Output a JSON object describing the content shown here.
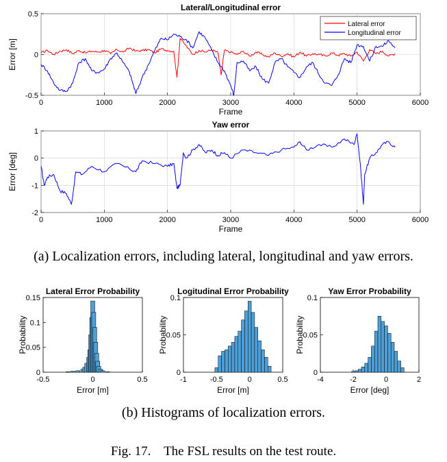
{
  "figure": {
    "caption_a": "(a) Localization errors, including lateral, longitudinal and yaw errors.",
    "caption_b": "(b) Histograms of localization errors.",
    "caption_fig": "Fig. 17.    The FSL results on the test route."
  },
  "colors": {
    "lateral": "#ff0000",
    "longitudinal": "#0000ff",
    "yaw": "#0000ff",
    "bar": "#4f9fd6",
    "bar_dark": "#000000"
  },
  "chart_data": [
    {
      "type": "line",
      "title": "Lateral/Longitudinal error",
      "xlabel": "Frame",
      "ylabel": "Error [m]",
      "xlim": [
        0,
        6000
      ],
      "ylim": [
        -0.5,
        0.5
      ],
      "xticks": [
        "0",
        "1000",
        "2000",
        "3000",
        "4000",
        "5000",
        "6000"
      ],
      "yticks": [
        "-0.5",
        "0",
        "0.5"
      ],
      "grid": true,
      "legend_position": "top-right",
      "series": [
        {
          "name": "Lateral error",
          "color": "#ff0000",
          "x": [
            0,
            100,
            200,
            300,
            400,
            500,
            600,
            700,
            800,
            900,
            1000,
            1100,
            1200,
            1300,
            1400,
            1500,
            1600,
            1700,
            1800,
            1900,
            2000,
            2100,
            2150,
            2200,
            2300,
            2400,
            2500,
            2600,
            2700,
            2800,
            2850,
            2900,
            3000,
            3100,
            3200,
            3300,
            3400,
            3500,
            3600,
            3700,
            3800,
            3900,
            4000,
            4100,
            4200,
            4300,
            4400,
            4500,
            4600,
            4700,
            4800,
            4900,
            5000,
            5100,
            5200,
            5300,
            5400,
            5500,
            5600
          ],
          "y": [
            0.02,
            0.05,
            0.0,
            0.04,
            0.06,
            0.01,
            0.05,
            0.02,
            0.04,
            0.03,
            0.05,
            0.01,
            0.06,
            0.03,
            0.08,
            0.04,
            0.05,
            0.06,
            0.02,
            0.07,
            0.05,
            0.04,
            -0.28,
            0.2,
            0.1,
            0.0,
            0.05,
            0.03,
            0.06,
            0.02,
            -0.25,
            0.05,
            0.03,
            0.0,
            0.04,
            -0.02,
            0.03,
            0.0,
            -0.03,
            0.02,
            -0.02,
            0.01,
            -0.03,
            0.03,
            -0.02,
            0.01,
            0.0,
            -0.02,
            0.02,
            -0.01,
            0.01,
            -0.02,
            0.03,
            -0.08,
            0.06,
            0.01,
            0.04,
            -0.02,
            0.01
          ]
        },
        {
          "name": "Longitudinal error",
          "color": "#0000ff",
          "x": [
            0,
            100,
            200,
            300,
            400,
            500,
            600,
            700,
            800,
            900,
            1000,
            1100,
            1200,
            1300,
            1400,
            1450,
            1500,
            1600,
            1700,
            1800,
            1900,
            2000,
            2100,
            2200,
            2300,
            2400,
            2500,
            2600,
            2700,
            2800,
            2900,
            3000,
            3050,
            3100,
            3200,
            3300,
            3400,
            3500,
            3600,
            3700,
            3800,
            3900,
            4000,
            4100,
            4200,
            4300,
            4400,
            4500,
            4600,
            4700,
            4800,
            4900,
            5000,
            5100,
            5200,
            5300,
            5400,
            5500,
            5600
          ],
          "y": [
            -0.12,
            -0.2,
            -0.35,
            -0.44,
            -0.45,
            -0.35,
            -0.1,
            -0.05,
            -0.2,
            -0.22,
            -0.18,
            -0.05,
            0.02,
            -0.1,
            -0.22,
            -0.35,
            -0.48,
            -0.28,
            -0.12,
            0.05,
            0.2,
            0.18,
            0.25,
            0.22,
            0.18,
            0.08,
            0.28,
            0.2,
            0.05,
            -0.1,
            -0.2,
            -0.38,
            -0.5,
            -0.1,
            -0.08,
            -0.2,
            -0.15,
            -0.3,
            -0.35,
            -0.1,
            -0.05,
            -0.15,
            -0.22,
            -0.28,
            -0.15,
            -0.1,
            -0.25,
            -0.35,
            -0.38,
            -0.25,
            -0.05,
            -0.1,
            0.12,
            0.1,
            -0.08,
            0.1,
            0.1,
            0.17,
            0.08
          ]
        }
      ]
    },
    {
      "type": "line",
      "title": "Yaw error",
      "xlabel": "Frame",
      "ylabel": "Error [deg]",
      "xlim": [
        0,
        6000
      ],
      "ylim": [
        -2,
        1
      ],
      "xticks": [
        "0",
        "1000",
        "2000",
        "3000",
        "4000",
        "5000",
        "6000"
      ],
      "yticks": [
        "-2",
        "-1",
        "0",
        "1"
      ],
      "grid": true,
      "series": [
        {
          "color": "#0000ff",
          "x": [
            0,
            50,
            100,
            200,
            300,
            400,
            480,
            550,
            650,
            800,
            1000,
            1200,
            1400,
            1500,
            1600,
            1800,
            2000,
            2100,
            2150,
            2200,
            2250,
            2300,
            2400,
            2500,
            2600,
            2700,
            2800,
            2900,
            3000,
            3200,
            3400,
            3600,
            3800,
            4000,
            4100,
            4200,
            4400,
            4600,
            4800,
            4950,
            5000,
            5050,
            5100,
            5120,
            5200,
            5300,
            5400,
            5500,
            5600
          ],
          "y": [
            -0.3,
            -1.0,
            -0.7,
            -0.6,
            -1.2,
            -1.3,
            -1.7,
            -0.5,
            -0.6,
            -0.3,
            -0.5,
            -0.2,
            -0.4,
            -0.5,
            -0.1,
            -0.2,
            -0.3,
            -0.2,
            -1.1,
            -1.0,
            0.2,
            0.0,
            0.3,
            0.5,
            0.2,
            0.3,
            0.1,
            0.2,
            0.0,
            0.3,
            0.2,
            0.1,
            0.3,
            0.4,
            0.6,
            0.3,
            0.5,
            0.4,
            0.7,
            0.5,
            0.9,
            -0.2,
            -1.7,
            -0.6,
            0.0,
            0.2,
            0.5,
            0.6,
            0.4
          ]
        }
      ]
    },
    {
      "type": "bar",
      "title": "Lateral Error Probability",
      "xlabel": "Error [m]",
      "ylabel": "Probability",
      "xlim": [
        -0.5,
        0.5
      ],
      "ylim": [
        0,
        0.15
      ],
      "xticks": [
        "-0.5",
        "0",
        "0.5"
      ],
      "yticks": [
        "0",
        "0.05",
        "0.1",
        "0.15"
      ],
      "x": [
        -0.25,
        -0.2,
        -0.15,
        -0.1,
        -0.08,
        -0.06,
        -0.04,
        -0.03,
        -0.02,
        -0.01,
        0.0,
        0.01,
        0.02,
        0.03,
        0.04,
        0.05,
        0.06,
        0.08,
        0.1,
        0.15
      ],
      "values": [
        0.001,
        0.002,
        0.003,
        0.006,
        0.01,
        0.018,
        0.03,
        0.045,
        0.075,
        0.11,
        0.143,
        0.12,
        0.09,
        0.06,
        0.038,
        0.022,
        0.012,
        0.006,
        0.003,
        0.001
      ]
    },
    {
      "type": "bar",
      "title": "Logitudinal Error Probability",
      "xlabel": "Error [m]",
      "ylabel": "Probability",
      "xlim": [
        -1,
        0.5
      ],
      "ylim": [
        0,
        0.1
      ],
      "xticks": [
        "-1",
        "-0.5",
        "0",
        "0.5"
      ],
      "yticks": [
        "0",
        "0.05",
        "0.1"
      ],
      "x": [
        -0.5,
        -0.45,
        -0.4,
        -0.35,
        -0.3,
        -0.25,
        -0.2,
        -0.15,
        -0.1,
        -0.05,
        0.0,
        0.05,
        0.1,
        0.15,
        0.2,
        0.25,
        0.3
      ],
      "values": [
        0.006,
        0.022,
        0.028,
        0.03,
        0.035,
        0.04,
        0.048,
        0.055,
        0.07,
        0.082,
        0.095,
        0.08,
        0.06,
        0.042,
        0.03,
        0.02,
        0.008
      ]
    },
    {
      "type": "bar",
      "title": "Yaw Error Probability",
      "xlabel": "Error [deg]",
      "ylabel": "Probability",
      "xlim": [
        -4,
        2
      ],
      "ylim": [
        0,
        0.1
      ],
      "xticks": [
        "-4",
        "-2",
        "0",
        "2"
      ],
      "yticks": [
        "0",
        "0.05",
        "0.1"
      ],
      "x": [
        -2.0,
        -1.8,
        -1.6,
        -1.4,
        -1.2,
        -1.0,
        -0.8,
        -0.6,
        -0.4,
        -0.2,
        0.0,
        0.2,
        0.4,
        0.6,
        0.8,
        1.0
      ],
      "values": [
        0.001,
        0.002,
        0.004,
        0.007,
        0.012,
        0.02,
        0.035,
        0.055,
        0.075,
        0.068,
        0.062,
        0.052,
        0.04,
        0.028,
        0.015,
        0.006
      ]
    }
  ]
}
